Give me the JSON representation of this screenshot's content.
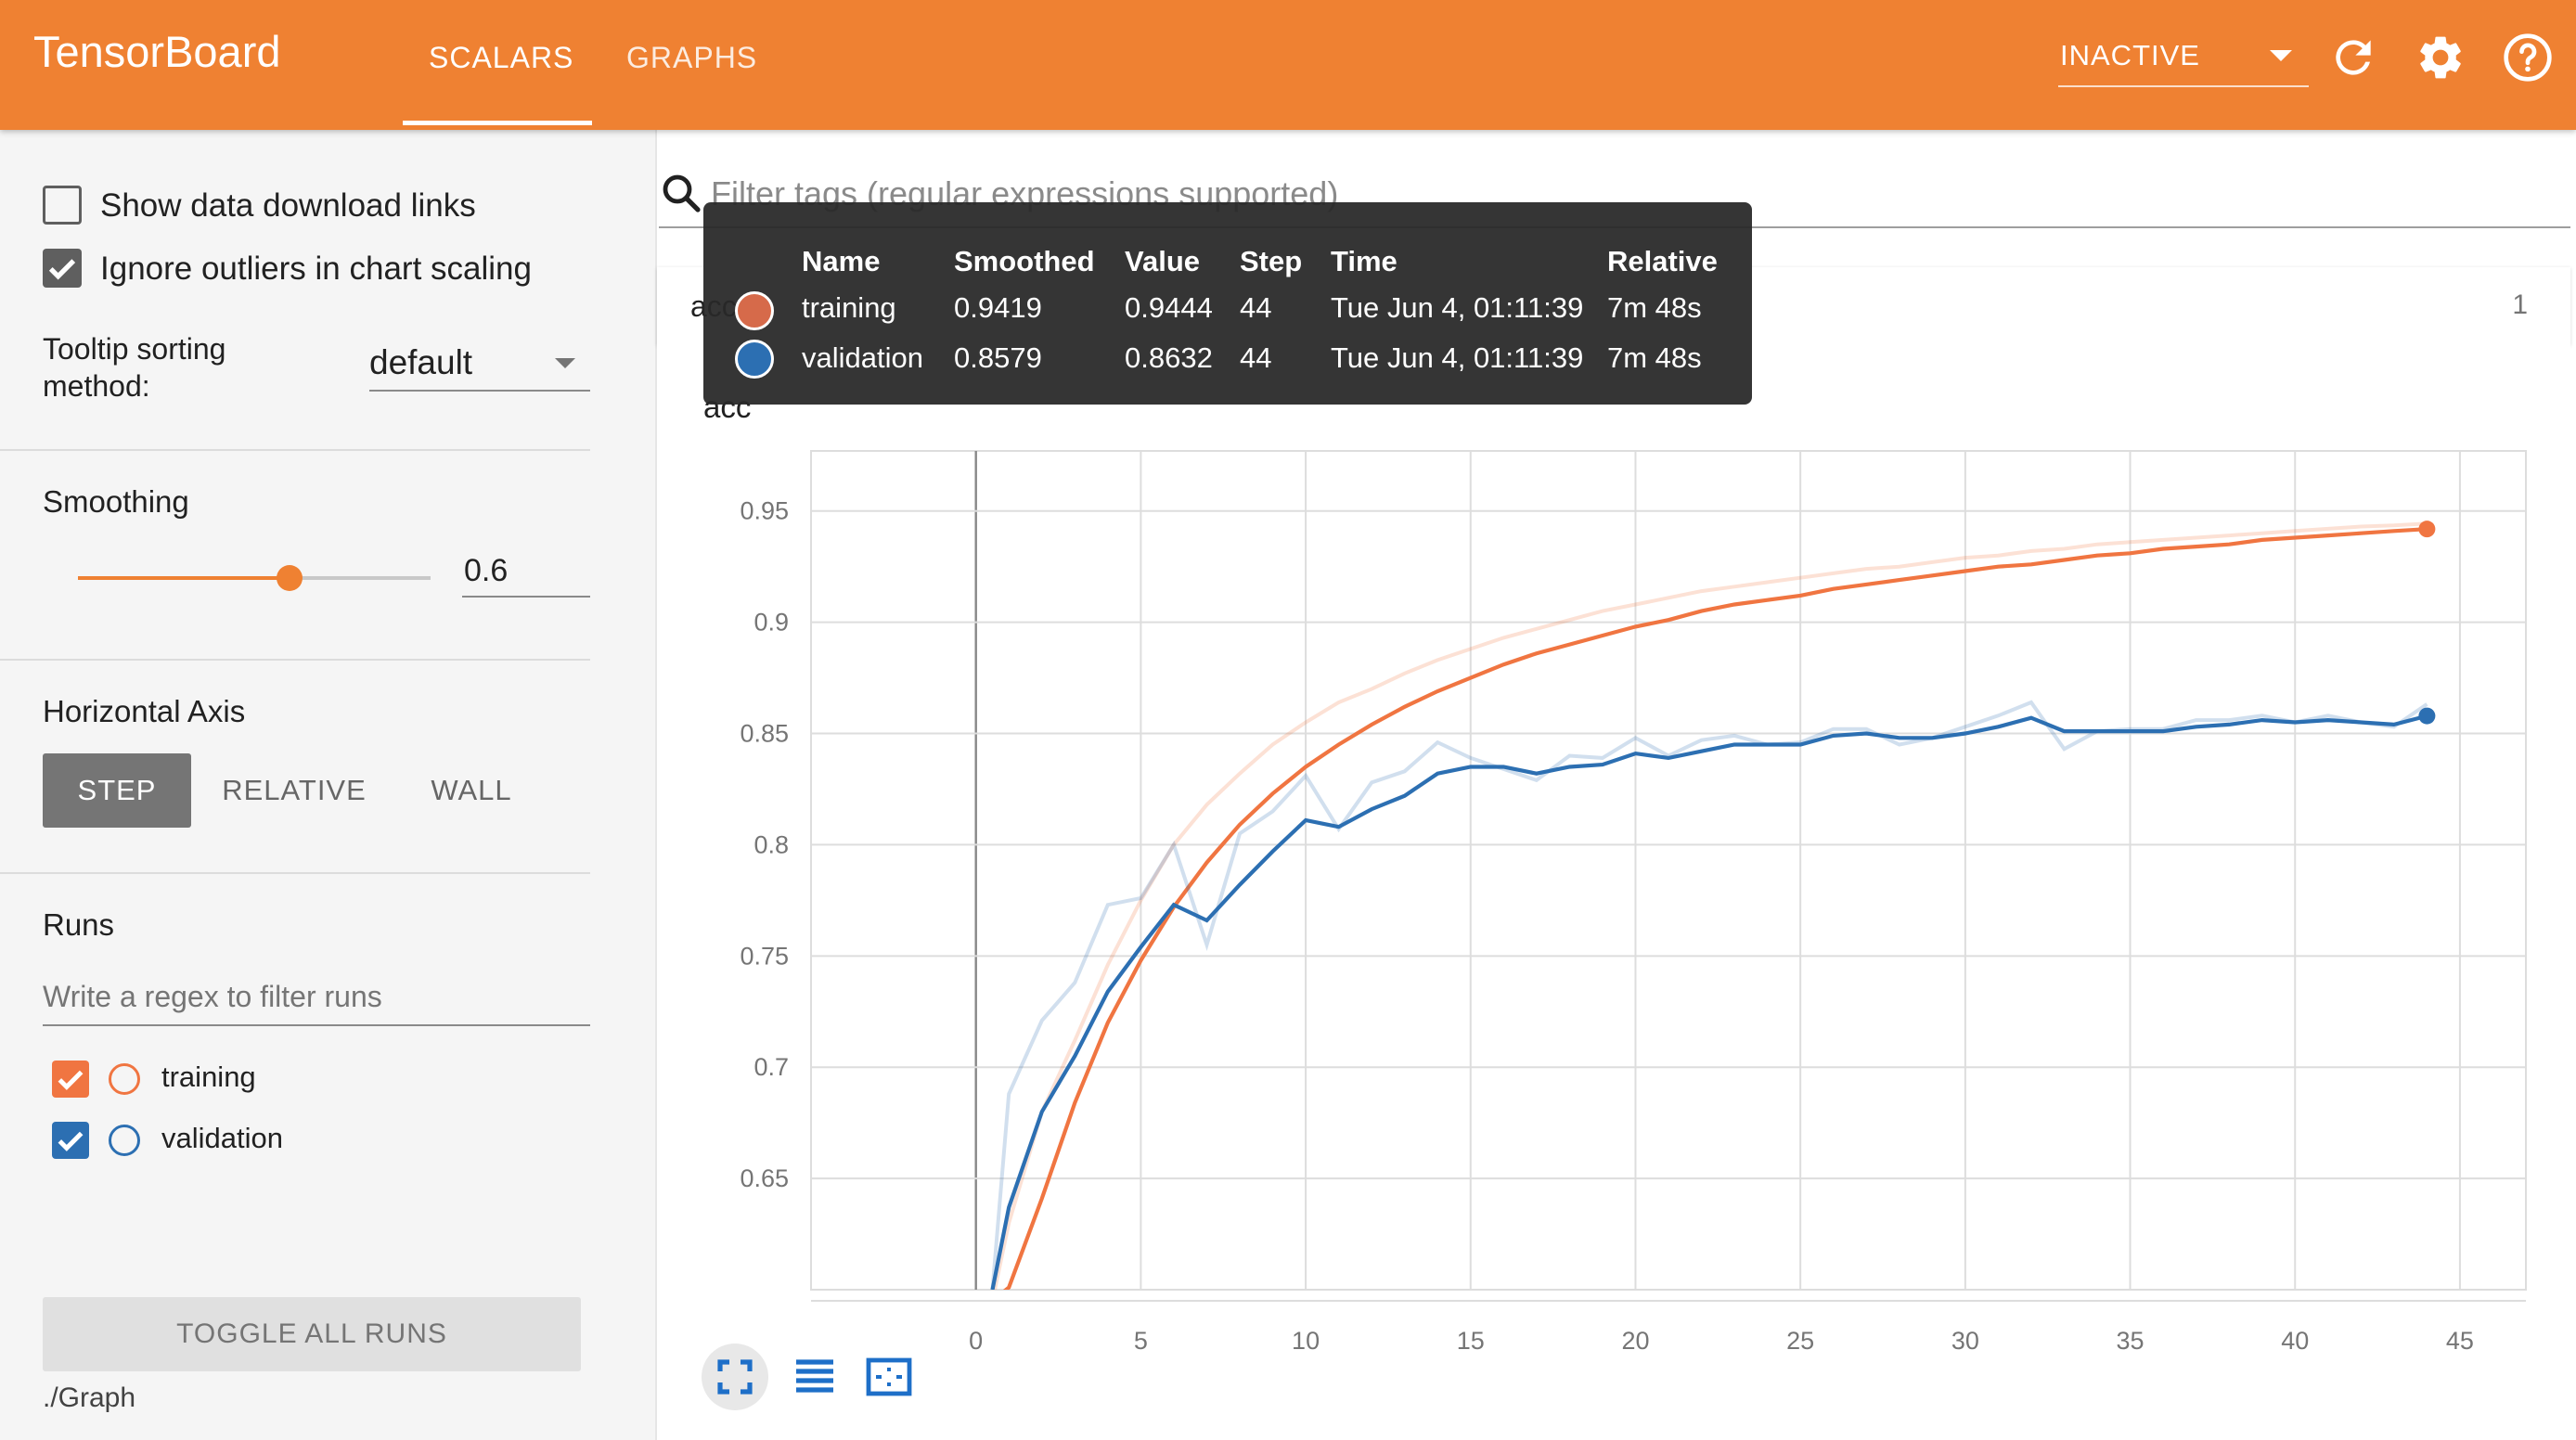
{
  "app": {
    "name": "TensorBoard",
    "tabs": [
      {
        "label": "SCALARS",
        "active": true
      },
      {
        "label": "GRAPHS",
        "active": false
      }
    ],
    "run_status": "INACTIVE",
    "accent_color": "#ef8132",
    "icons": [
      "refresh-icon",
      "gear-icon",
      "help-icon"
    ]
  },
  "sidebar": {
    "show_download_links": {
      "label": "Show data download links",
      "checked": false
    },
    "ignore_outliers": {
      "label": "Ignore outliers in chart scaling",
      "checked": true
    },
    "tooltip_sorting": {
      "label_line1": "Tooltip sorting",
      "label_line2": "method:",
      "value": "default"
    },
    "smoothing": {
      "title": "Smoothing",
      "value": "0.6",
      "fraction": 0.6
    },
    "horizontal_axis": {
      "title": "Horizontal Axis",
      "options": [
        {
          "label": "STEP",
          "selected": true
        },
        {
          "label": "RELATIVE",
          "selected": false
        },
        {
          "label": "WALL",
          "selected": false
        }
      ]
    },
    "runs": {
      "title": "Runs",
      "filter_placeholder": "Write a regex to filter runs",
      "items": [
        {
          "name": "training",
          "checked": true,
          "color": "#f07541"
        },
        {
          "name": "validation",
          "checked": true,
          "color": "#2c6fb2"
        }
      ]
    },
    "toggle_all_label": "TOGGLE ALL RUNS",
    "logdir": "./Graph"
  },
  "main": {
    "search_placeholder": "Filter tags (regular expressions supported)",
    "tag_group": {
      "name": "acc",
      "count": "1"
    },
    "chart_title": "acc"
  },
  "tooltip": {
    "headers": [
      "Name",
      "Smoothed",
      "Value",
      "Step",
      "Time",
      "Relative"
    ],
    "rows": [
      {
        "name": "training",
        "smoothed": "0.9419",
        "value": "0.9444",
        "step": "44",
        "time": "Tue Jun 4, 01:11:39",
        "relative": "7m 48s",
        "color": "#d66a4a"
      },
      {
        "name": "validation",
        "smoothed": "0.8579",
        "value": "0.8632",
        "step": "44",
        "time": "Tue Jun 4, 01:11:39",
        "relative": "7m 48s",
        "color": "#2c6fb2"
      }
    ]
  },
  "chart_data": {
    "type": "line",
    "title": "acc",
    "xlabel": "",
    "ylabel": "",
    "xlim": [
      -5,
      47
    ],
    "ylim": [
      0.6,
      0.977
    ],
    "x_ticks": [
      "0",
      "5",
      "10",
      "15",
      "20",
      "25",
      "30",
      "35",
      "40",
      "45"
    ],
    "y_ticks": [
      "0.65",
      "0.7",
      "0.75",
      "0.8",
      "0.85",
      "0.9",
      "0.95"
    ],
    "grid": true,
    "series": [
      {
        "name": "training",
        "color": "#f07541",
        "x": [
          0.5,
          1,
          2,
          3,
          4,
          5,
          6,
          7,
          8,
          9,
          10,
          11,
          12,
          13,
          14,
          15,
          16,
          17,
          18,
          19,
          20,
          21,
          22,
          23,
          24,
          25,
          26,
          27,
          28,
          29,
          30,
          31,
          32,
          33,
          34,
          35,
          36,
          37,
          38,
          39,
          40,
          41,
          42,
          43,
          44
        ],
        "smoothed": [
          0.595,
          0.601,
          0.641,
          0.684,
          0.72,
          0.748,
          0.772,
          0.792,
          0.809,
          0.823,
          0.835,
          0.845,
          0.854,
          0.862,
          0.869,
          0.875,
          0.881,
          0.886,
          0.89,
          0.894,
          0.898,
          0.901,
          0.905,
          0.908,
          0.91,
          0.912,
          0.915,
          0.917,
          0.919,
          0.921,
          0.923,
          0.925,
          0.926,
          0.928,
          0.93,
          0.931,
          0.933,
          0.934,
          0.935,
          0.937,
          0.938,
          0.939,
          0.94,
          0.941,
          0.9419
        ],
        "raw": [
          0.595,
          0.63,
          0.68,
          0.712,
          0.746,
          0.775,
          0.8,
          0.818,
          0.832,
          0.845,
          0.855,
          0.864,
          0.87,
          0.877,
          0.883,
          0.888,
          0.893,
          0.897,
          0.901,
          0.905,
          0.908,
          0.911,
          0.914,
          0.916,
          0.918,
          0.92,
          0.922,
          0.924,
          0.925,
          0.927,
          0.929,
          0.93,
          0.932,
          0.933,
          0.935,
          0.936,
          0.937,
          0.938,
          0.939,
          0.94,
          0.941,
          0.942,
          0.943,
          0.9435,
          0.9444
        ]
      },
      {
        "name": "validation",
        "color": "#2c6fb2",
        "x": [
          0.5,
          1,
          2,
          3,
          4,
          5,
          6,
          7,
          8,
          9,
          10,
          11,
          12,
          13,
          14,
          15,
          16,
          17,
          18,
          19,
          20,
          21,
          22,
          23,
          24,
          25,
          26,
          27,
          28,
          29,
          30,
          31,
          32,
          33,
          34,
          35,
          36,
          37,
          38,
          39,
          40,
          41,
          42,
          43,
          44
        ],
        "smoothed": [
          0.6,
          0.637,
          0.68,
          0.705,
          0.734,
          0.754,
          0.773,
          0.766,
          0.782,
          0.797,
          0.811,
          0.808,
          0.816,
          0.822,
          0.832,
          0.835,
          0.835,
          0.832,
          0.835,
          0.836,
          0.841,
          0.839,
          0.842,
          0.845,
          0.845,
          0.845,
          0.849,
          0.85,
          0.848,
          0.848,
          0.85,
          0.853,
          0.857,
          0.851,
          0.851,
          0.851,
          0.851,
          0.853,
          0.854,
          0.856,
          0.855,
          0.856,
          0.855,
          0.854,
          0.8579
        ],
        "raw": [
          0.6,
          0.688,
          0.721,
          0.738,
          0.773,
          0.776,
          0.8,
          0.755,
          0.805,
          0.815,
          0.831,
          0.807,
          0.828,
          0.833,
          0.846,
          0.839,
          0.834,
          0.829,
          0.84,
          0.839,
          0.848,
          0.84,
          0.847,
          0.849,
          0.845,
          0.846,
          0.852,
          0.852,
          0.845,
          0.848,
          0.853,
          0.858,
          0.864,
          0.843,
          0.851,
          0.852,
          0.852,
          0.856,
          0.856,
          0.858,
          0.855,
          0.858,
          0.855,
          0.853,
          0.8632
        ]
      }
    ]
  }
}
